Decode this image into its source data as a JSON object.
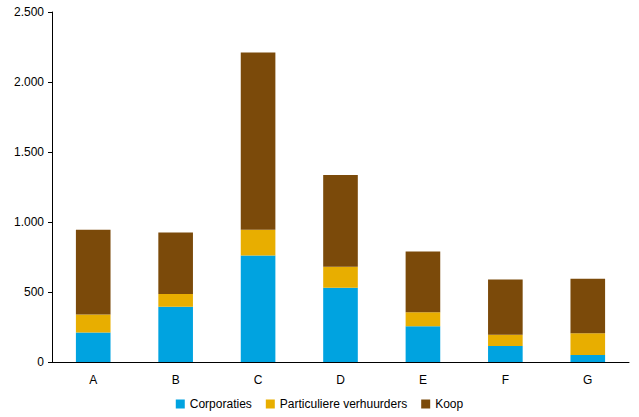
{
  "chart_data": {
    "type": "bar",
    "stacked": true,
    "legend": "bottom",
    "grid": false,
    "categories": [
      "A",
      "B",
      "C",
      "D",
      "E",
      "F",
      "G"
    ],
    "series": [
      {
        "name": "Corporaties",
        "color": "#00A3E0",
        "values": [
          210,
          395,
          760,
          530,
          255,
          115,
          50
        ]
      },
      {
        "name": "Particuliere verhuurders",
        "color": "#E8AE00",
        "values": [
          130,
          90,
          185,
          150,
          100,
          80,
          155
        ]
      },
      {
        "name": "Koop",
        "color": "#7B4A0A",
        "values": [
          605,
          440,
          1265,
          655,
          435,
          395,
          390
        ]
      }
    ],
    "ylim": [
      0,
      2500
    ],
    "yticks": [
      0,
      500,
      {
        "value": 1000,
        "label": "1.000"
      },
      {
        "value": 1500,
        "label": "1.500"
      },
      {
        "value": 2000,
        "label": "2.000"
      },
      {
        "value": 2500,
        "label": "2.500"
      }
    ]
  }
}
